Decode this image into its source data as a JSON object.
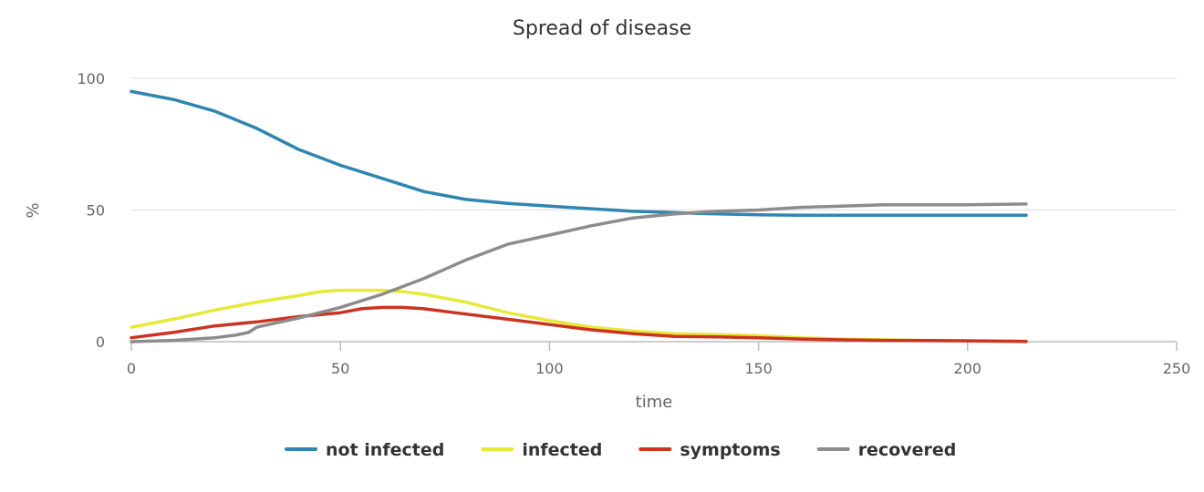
{
  "chart_data": {
    "type": "line",
    "title": "Spread of disease",
    "xlabel": "time",
    "ylabel": "%",
    "xlim": [
      0,
      250
    ],
    "ylim": [
      0,
      100
    ],
    "x_ticks": [
      0,
      50,
      100,
      150,
      200,
      250
    ],
    "y_ticks": [
      0,
      50,
      100
    ],
    "grid": "horizontal",
    "legend_position": "bottom",
    "series": [
      {
        "name": "not infected",
        "color": "#2f86b0",
        "points": [
          [
            0,
            95
          ],
          [
            10,
            92
          ],
          [
            20,
            87.5
          ],
          [
            30,
            81
          ],
          [
            40,
            73
          ],
          [
            50,
            67
          ],
          [
            60,
            62
          ],
          [
            70,
            57
          ],
          [
            80,
            54
          ],
          [
            90,
            52.5
          ],
          [
            100,
            51.5
          ],
          [
            110,
            50.5
          ],
          [
            120,
            49.5
          ],
          [
            130,
            49
          ],
          [
            140,
            48.5
          ],
          [
            150,
            48.2
          ],
          [
            160,
            48
          ],
          [
            170,
            48
          ],
          [
            180,
            48
          ],
          [
            190,
            48
          ],
          [
            200,
            48
          ],
          [
            214,
            48
          ]
        ]
      },
      {
        "name": "infected",
        "color": "#e8e83a",
        "points": [
          [
            0,
            5.5
          ],
          [
            10,
            8.5
          ],
          [
            20,
            12
          ],
          [
            30,
            15
          ],
          [
            40,
            17.5
          ],
          [
            45,
            19
          ],
          [
            50,
            19.5
          ],
          [
            55,
            19.5
          ],
          [
            60,
            19.5
          ],
          [
            65,
            19
          ],
          [
            70,
            18
          ],
          [
            75,
            16.5
          ],
          [
            80,
            15
          ],
          [
            90,
            11
          ],
          [
            100,
            8
          ],
          [
            110,
            5.5
          ],
          [
            120,
            4
          ],
          [
            130,
            3
          ],
          [
            140,
            2.7
          ],
          [
            150,
            2.3
          ],
          [
            160,
            1.5
          ],
          [
            170,
            1
          ],
          [
            180,
            0.7
          ],
          [
            190,
            0.5
          ],
          [
            200,
            0.4
          ],
          [
            214,
            0.2
          ]
        ]
      },
      {
        "name": "symptoms",
        "color": "#cc3322",
        "points": [
          [
            0,
            1.5
          ],
          [
            10,
            3.5
          ],
          [
            20,
            6
          ],
          [
            30,
            7.5
          ],
          [
            40,
            9.5
          ],
          [
            50,
            11
          ],
          [
            55,
            12.5
          ],
          [
            60,
            13
          ],
          [
            65,
            13
          ],
          [
            70,
            12.5
          ],
          [
            75,
            11.5
          ],
          [
            80,
            10.5
          ],
          [
            90,
            8.5
          ],
          [
            100,
            6.5
          ],
          [
            110,
            4.5
          ],
          [
            120,
            3
          ],
          [
            130,
            2
          ],
          [
            140,
            1.8
          ],
          [
            150,
            1.5
          ],
          [
            160,
            1
          ],
          [
            170,
            0.7
          ],
          [
            180,
            0.5
          ],
          [
            190,
            0.4
          ],
          [
            200,
            0.3
          ],
          [
            214,
            0.1
          ]
        ]
      },
      {
        "name": "recovered",
        "color": "#8c8c8c",
        "points": [
          [
            0,
            0
          ],
          [
            10,
            0.5
          ],
          [
            20,
            1.5
          ],
          [
            25,
            2.5
          ],
          [
            28,
            3.5
          ],
          [
            30,
            5.5
          ],
          [
            40,
            9
          ],
          [
            50,
            13
          ],
          [
            60,
            18
          ],
          [
            70,
            24
          ],
          [
            80,
            31
          ],
          [
            90,
            37
          ],
          [
            100,
            40.5
          ],
          [
            110,
            44
          ],
          [
            120,
            47
          ],
          [
            130,
            48.5
          ],
          [
            140,
            49.5
          ],
          [
            150,
            50
          ],
          [
            160,
            51
          ],
          [
            170,
            51.5
          ],
          [
            180,
            52
          ],
          [
            190,
            52
          ],
          [
            200,
            52
          ],
          [
            214,
            52.3
          ]
        ]
      }
    ]
  }
}
